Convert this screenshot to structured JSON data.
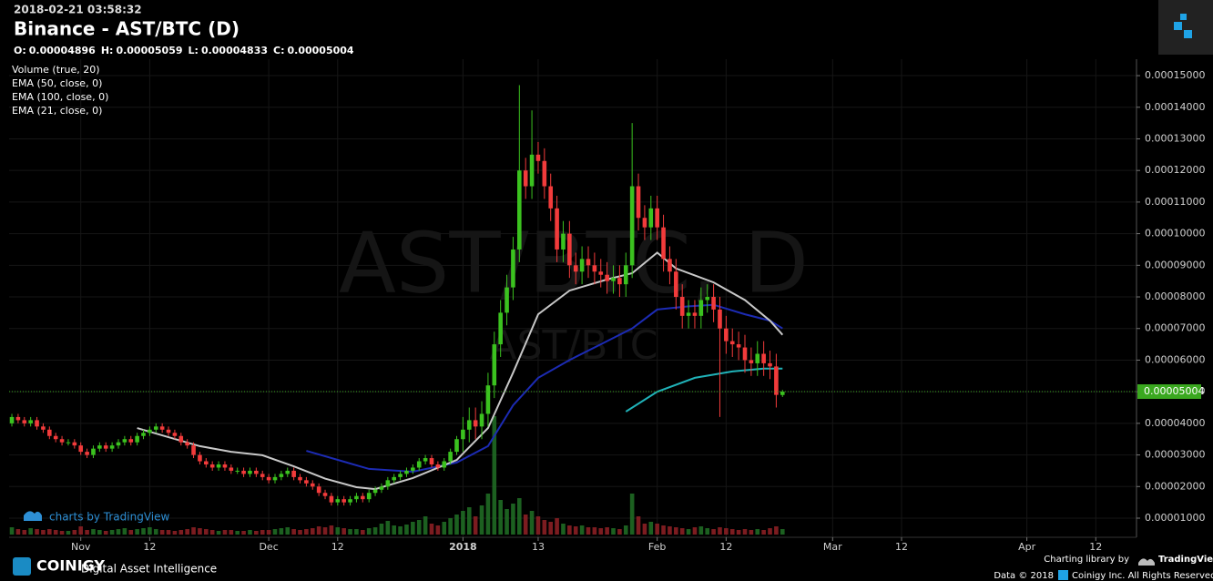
{
  "header": {
    "timestamp": "2018-02-21 03:58:32",
    "title": "Binance - AST/BTC (D)",
    "ohlc": [
      {
        "label": "O:",
        "value": "0.00004896"
      },
      {
        "label": "H:",
        "value": "0.00005059"
      },
      {
        "label": "L:",
        "value": "0.00004833"
      },
      {
        "label": "C:",
        "value": "0.00005004"
      }
    ]
  },
  "footer": {
    "brand": "COINIGY",
    "tagline": "Digital Asset Intelligence",
    "credit": "charts by TradingView",
    "library": "Charting library by",
    "library_name": "TradingView",
    "data_note": "Data © 2018",
    "rights": "Coinigy Inc. All Rights Reserved."
  },
  "chart_data": {
    "type": "candlestick",
    "watermark": "AST/BTC, D",
    "watermark_sub": "AST/BTC",
    "up_color": "#3bc21f",
    "down_color": "#f23b3b",
    "grid": true,
    "open": [
      4e-05,
      4.2e-05,
      4.1e-05,
      4e-05,
      4.1e-05,
      3.9e-05,
      3.8e-05,
      3.6e-05,
      3.5e-05,
      3.4e-05,
      3.4e-05,
      3.3e-05,
      3.1e-05,
      3e-05,
      3.2e-05,
      3.3e-05,
      3.2e-05,
      3.3e-05,
      3.4e-05,
      3.5e-05,
      3.4e-05,
      3.6e-05,
      3.7e-05,
      3.8e-05,
      3.9e-05,
      3.8e-05,
      3.7e-05,
      3.6e-05,
      3.4e-05,
      3.3e-05,
      3e-05,
      2.8e-05,
      2.7e-05,
      2.6e-05,
      2.7e-05,
      2.6e-05,
      2.5e-05,
      2.5e-05,
      2.4e-05,
      2.5e-05,
      2.4e-05,
      2.3e-05,
      2.2e-05,
      2.3e-05,
      2.4e-05,
      2.5e-05,
      2.3e-05,
      2.2e-05,
      2.1e-05,
      2e-05,
      1.8e-05,
      1.7e-05,
      1.5e-05,
      1.6e-05,
      1.5e-05,
      1.6e-05,
      1.7e-05,
      1.6e-05,
      1.8e-05,
      1.9e-05,
      2e-05,
      2.2e-05,
      2.3e-05,
      2.4e-05,
      2.5e-05,
      2.6e-05,
      2.8e-05,
      2.9e-05,
      2.7e-05,
      2.6e-05,
      2.8e-05,
      3.1e-05,
      3.5e-05,
      3.8e-05,
      4.1e-05,
      3.9e-05,
      4.3e-05,
      5.2e-05,
      6.5e-05,
      7.5e-05,
      8.3e-05,
      9.5e-05,
      0.00012,
      0.000115,
      0.000125,
      0.000123,
      0.000115,
      0.000108,
      9.5e-05,
      0.0001,
      9e-05,
      8.8e-05,
      9.2e-05,
      9e-05,
      8.8e-05,
      8.7e-05,
      8.5e-05,
      8.6e-05,
      8.4e-05,
      9e-05,
      0.000115,
      0.000105,
      0.000102,
      0.000108,
      0.000102,
      9.2e-05,
      8.8e-05,
      8e-05,
      7.4e-05,
      7.5e-05,
      7.4e-05,
      7.9e-05,
      8e-05,
      7.6e-05,
      7e-05,
      6.6e-05,
      6.5e-05,
      6.4e-05,
      6e-05,
      5.9e-05,
      6.2e-05,
      5.9e-05,
      5.8e-05,
      4.896e-05
    ],
    "high": [
      4.3e-05,
      4.3e-05,
      4.2e-05,
      4.2e-05,
      4.2e-05,
      4e-05,
      3.9e-05,
      3.7e-05,
      3.6e-05,
      3.5e-05,
      3.5e-05,
      3.4e-05,
      3.2e-05,
      3.3e-05,
      3.4e-05,
      3.4e-05,
      3.4e-05,
      3.5e-05,
      3.6e-05,
      3.6e-05,
      3.7e-05,
      3.8e-05,
      3.9e-05,
      4e-05,
      4e-05,
      3.9e-05,
      3.8e-05,
      3.7e-05,
      3.5e-05,
      3.4e-05,
      3.1e-05,
      2.9e-05,
      2.8e-05,
      2.8e-05,
      2.8e-05,
      2.7e-05,
      2.6e-05,
      2.6e-05,
      2.6e-05,
      2.6e-05,
      2.5e-05,
      2.4e-05,
      2.4e-05,
      2.5e-05,
      2.6e-05,
      2.6e-05,
      2.4e-05,
      2.3e-05,
      2.2e-05,
      2.1e-05,
      1.9e-05,
      1.8e-05,
      1.7e-05,
      1.7e-05,
      1.7e-05,
      1.8e-05,
      1.8e-05,
      1.9e-05,
      2e-05,
      2.1e-05,
      2.3e-05,
      2.4e-05,
      2.5e-05,
      2.6e-05,
      2.7e-05,
      2.9e-05,
      3e-05,
      3e-05,
      2.8e-05,
      2.9e-05,
      3.2e-05,
      3.6e-05,
      4.2e-05,
      4.5e-05,
      4.5e-05,
      4.7e-05,
      5.6e-05,
      6.9e-05,
      7.9e-05,
      8.7e-05,
      9.9e-05,
      0.000147,
      0.000124,
      0.000139,
      0.000129,
      0.000127,
      0.000119,
      0.000112,
      0.000104,
      0.000104,
      9.4e-05,
      9.6e-05,
      9.6e-05,
      9.4e-05,
      9.2e-05,
      9.1e-05,
      9e-05,
      9e-05,
      9.4e-05,
      0.000135,
      0.000119,
      0.000109,
      0.000112,
      0.000112,
      0.000106,
      9.6e-05,
      9.2e-05,
      8.4e-05,
      7.9e-05,
      7.9e-05,
      8.3e-05,
      8.4e-05,
      8.4e-05,
      8e-05,
      7.4e-05,
      7e-05,
      6.9e-05,
      6.8e-05,
      6.4e-05,
      6.6e-05,
      6.6e-05,
      6.3e-05,
      6.2e-05,
      5.059e-05
    ],
    "low": [
      3.9e-05,
      4e-05,
      3.9e-05,
      3.9e-05,
      3.8e-05,
      3.7e-05,
      3.5e-05,
      3.4e-05,
      3.3e-05,
      3.3e-05,
      3.2e-05,
      3e-05,
      2.9e-05,
      2.9e-05,
      3.1e-05,
      3.1e-05,
      3.1e-05,
      3.2e-05,
      3.3e-05,
      3.3e-05,
      3.3e-05,
      3.5e-05,
      3.6e-05,
      3.7e-05,
      3.7e-05,
      3.6e-05,
      3.5e-05,
      3.3e-05,
      3.2e-05,
      2.9e-05,
      2.7e-05,
      2.6e-05,
      2.5e-05,
      2.5e-05,
      2.5e-05,
      2.4e-05,
      2.4e-05,
      2.3e-05,
      2.3e-05,
      2.3e-05,
      2.2e-05,
      2.1e-05,
      2.1e-05,
      2.2e-05,
      2.3e-05,
      2.2e-05,
      2.1e-05,
      2e-05,
      1.9e-05,
      1.7e-05,
      1.6e-05,
      1.4e-05,
      1.4e-05,
      1.4e-05,
      1.4e-05,
      1.5e-05,
      1.5e-05,
      1.5e-05,
      1.7e-05,
      1.8e-05,
      1.9e-05,
      2.1e-05,
      2.2e-05,
      2.3e-05,
      2.4e-05,
      2.5e-05,
      2.7e-05,
      2.6e-05,
      2.5e-05,
      2.5e-05,
      2.7e-05,
      3e-05,
      3.1e-05,
      3.4e-05,
      3.5e-05,
      3.5e-05,
      3.9e-05,
      4.8e-05,
      6.1e-05,
      7.1e-05,
      7.9e-05,
      9.1e-05,
      0.000111,
      0.000111,
      0.000119,
      0.000111,
      0.000104,
      9.1e-05,
      9.1e-05,
      8.6e-05,
      8.4e-05,
      8.4e-05,
      8.6e-05,
      8.4e-05,
      8.3e-05,
      8.1e-05,
      8.1e-05,
      8e-05,
      8e-05,
      8.6e-05,
      0.000101,
      9.8e-05,
      9.8e-05,
      9.8e-05,
      8.8e-05,
      8.4e-05,
      7.6e-05,
      7e-05,
      7e-05,
      7e-05,
      7e-05,
      7.5e-05,
      7.2e-05,
      4.2e-05,
      6.2e-05,
      6.1e-05,
      6e-05,
      5.6e-05,
      5.5e-05,
      5.5e-05,
      5.5e-05,
      5.4e-05,
      4.5e-05,
      4.833e-05
    ],
    "close": [
      4.2e-05,
      4.1e-05,
      4e-05,
      4.1e-05,
      3.9e-05,
      3.8e-05,
      3.6e-05,
      3.5e-05,
      3.4e-05,
      3.4e-05,
      3.3e-05,
      3.1e-05,
      3e-05,
      3.2e-05,
      3.3e-05,
      3.2e-05,
      3.3e-05,
      3.4e-05,
      3.5e-05,
      3.4e-05,
      3.6e-05,
      3.7e-05,
      3.8e-05,
      3.9e-05,
      3.8e-05,
      3.7e-05,
      3.6e-05,
      3.4e-05,
      3.3e-05,
      3e-05,
      2.8e-05,
      2.7e-05,
      2.6e-05,
      2.7e-05,
      2.6e-05,
      2.5e-05,
      2.5e-05,
      2.4e-05,
      2.5e-05,
      2.4e-05,
      2.3e-05,
      2.2e-05,
      2.3e-05,
      2.4e-05,
      2.5e-05,
      2.3e-05,
      2.2e-05,
      2.1e-05,
      2e-05,
      1.8e-05,
      1.7e-05,
      1.5e-05,
      1.6e-05,
      1.5e-05,
      1.6e-05,
      1.7e-05,
      1.6e-05,
      1.8e-05,
      1.9e-05,
      2e-05,
      2.2e-05,
      2.3e-05,
      2.4e-05,
      2.5e-05,
      2.6e-05,
      2.8e-05,
      2.9e-05,
      2.7e-05,
      2.6e-05,
      2.8e-05,
      3.1e-05,
      3.5e-05,
      3.8e-05,
      4.1e-05,
      3.9e-05,
      4.3e-05,
      5.2e-05,
      6.5e-05,
      7.5e-05,
      8.3e-05,
      9.5e-05,
      0.00012,
      0.000115,
      0.000125,
      0.000123,
      0.000115,
      0.000108,
      9.5e-05,
      0.0001,
      9e-05,
      8.8e-05,
      9.2e-05,
      9e-05,
      8.8e-05,
      8.7e-05,
      8.5e-05,
      8.6e-05,
      8.4e-05,
      9e-05,
      0.000115,
      0.000105,
      0.000102,
      0.000108,
      0.000102,
      9.2e-05,
      8.8e-05,
      8e-05,
      7.4e-05,
      7.5e-05,
      7.4e-05,
      7.9e-05,
      8e-05,
      7.6e-05,
      7e-05,
      6.6e-05,
      6.5e-05,
      6.4e-05,
      6e-05,
      5.9e-05,
      6.2e-05,
      5.9e-05,
      5.8e-05,
      4.9e-05,
      5.004e-05
    ],
    "volume": {
      "name": "Volume (true, 20)",
      "up_color": "#1f6a24",
      "down_color": "#8a1f24",
      "values": [
        8,
        6,
        5,
        7,
        6,
        5,
        6,
        5,
        4,
        4,
        5,
        9,
        5,
        6,
        5,
        4,
        5,
        6,
        7,
        5,
        6,
        7,
        8,
        6,
        5,
        5,
        4,
        5,
        6,
        8,
        7,
        6,
        5,
        4,
        5,
        5,
        4,
        4,
        5,
        4,
        5,
        5,
        6,
        7,
        8,
        6,
        5,
        6,
        7,
        9,
        8,
        10,
        8,
        7,
        6,
        6,
        5,
        7,
        8,
        12,
        15,
        10,
        9,
        11,
        14,
        16,
        20,
        12,
        10,
        14,
        18,
        22,
        26,
        30,
        20,
        32,
        45,
        130,
        38,
        28,
        34,
        40,
        22,
        26,
        20,
        16,
        14,
        18,
        12,
        10,
        9,
        10,
        8,
        8,
        7,
        8,
        7,
        6,
        10,
        45,
        20,
        12,
        14,
        12,
        10,
        9,
        8,
        7,
        6,
        8,
        9,
        7,
        6,
        8,
        7,
        6,
        5,
        6,
        5,
        6,
        5,
        7,
        9,
        6
      ]
    },
    "series": [
      {
        "name": "EMA (50, close, 0)",
        "color": "#1c2bb4",
        "x": [
          47,
          57,
          64,
          71,
          76,
          80,
          84,
          89,
          95,
          99,
          103,
          108,
          112,
          117,
          121,
          123
        ],
        "values": [
          3.13e-05,
          2.56e-05,
          2.47e-05,
          2.76e-05,
          3.28e-05,
          4.57e-05,
          5.44e-05,
          6e-05,
          6.6e-05,
          7e-05,
          7.6e-05,
          7.7e-05,
          7.75e-05,
          7.45e-05,
          7.25e-05,
          7e-05
        ]
      },
      {
        "name": "EMA (100, close, 0)",
        "color": "#20b2b8",
        "x": [
          98,
          103,
          109,
          115,
          120,
          123
        ],
        "values": [
          4.37e-05,
          5e-05,
          5.44e-05,
          5.64e-05,
          5.73e-05,
          5.73e-05
        ]
      },
      {
        "name": "EMA (21, close, 0)",
        "color": "#c8c8c8",
        "x": [
          20,
          25,
          30,
          35,
          40,
          45,
          50,
          55,
          58,
          64,
          71,
          76,
          80,
          84,
          89,
          95,
          99,
          103,
          106,
          112,
          117,
          121,
          123
        ],
        "values": [
          3.85e-05,
          3.56e-05,
          3.28e-05,
          3.1e-05,
          2.99e-05,
          2.64e-05,
          2.25e-05,
          1.98e-05,
          1.92e-05,
          2.27e-05,
          2.84e-05,
          3.85e-05,
          5.6e-05,
          7.45e-05,
          8.2e-05,
          8.55e-05,
          8.75e-05,
          9.4e-05,
          8.9e-05,
          8.46e-05,
          7.9e-05,
          7.25e-05,
          6.8e-05
        ]
      }
    ],
    "last_price": {
      "value": 5.004e-05,
      "label": "0.00005004",
      "color": "#3aa81f"
    },
    "xlim": [
      -0.44,
      179.5
    ],
    "xticks": [
      {
        "value": 11,
        "label": "Nov"
      },
      {
        "value": 22,
        "label": "12"
      },
      {
        "value": 41,
        "label": "Dec"
      },
      {
        "value": 52,
        "label": "12"
      },
      {
        "value": 72,
        "label": "2018"
      },
      {
        "value": 84,
        "label": "13"
      },
      {
        "value": 103,
        "label": "Feb"
      },
      {
        "value": 114,
        "label": "12"
      },
      {
        "value": 131,
        "label": "Mar"
      },
      {
        "value": 142,
        "label": "12"
      },
      {
        "value": 162,
        "label": "Apr"
      },
      {
        "value": 173,
        "label": "12"
      }
    ],
    "ylim": [
      3.95e-06,
      0.0001552
    ],
    "yticks": [
      {
        "value": 1e-05,
        "label": "0.00001000"
      },
      {
        "value": 2e-05,
        "label": "0.00002000"
      },
      {
        "value": 3e-05,
        "label": "0.00003000"
      },
      {
        "value": 4e-05,
        "label": "0.00004000"
      },
      {
        "value": 5e-05,
        "label": "0.00005000"
      },
      {
        "value": 6e-05,
        "label": "0.00006000"
      },
      {
        "value": 7e-05,
        "label": "0.00007000"
      },
      {
        "value": 8e-05,
        "label": "0.00008000"
      },
      {
        "value": 9e-05,
        "label": "0.00009000"
      },
      {
        "value": 0.0001,
        "label": "0.00010000"
      },
      {
        "value": 0.00011,
        "label": "0.00011000"
      },
      {
        "value": 0.00012,
        "label": "0.00012000"
      },
      {
        "value": 0.00013,
        "label": "0.00013000"
      },
      {
        "value": 0.00014,
        "label": "0.00014000"
      },
      {
        "value": 0.00015,
        "label": "0.00015000"
      }
    ]
  }
}
